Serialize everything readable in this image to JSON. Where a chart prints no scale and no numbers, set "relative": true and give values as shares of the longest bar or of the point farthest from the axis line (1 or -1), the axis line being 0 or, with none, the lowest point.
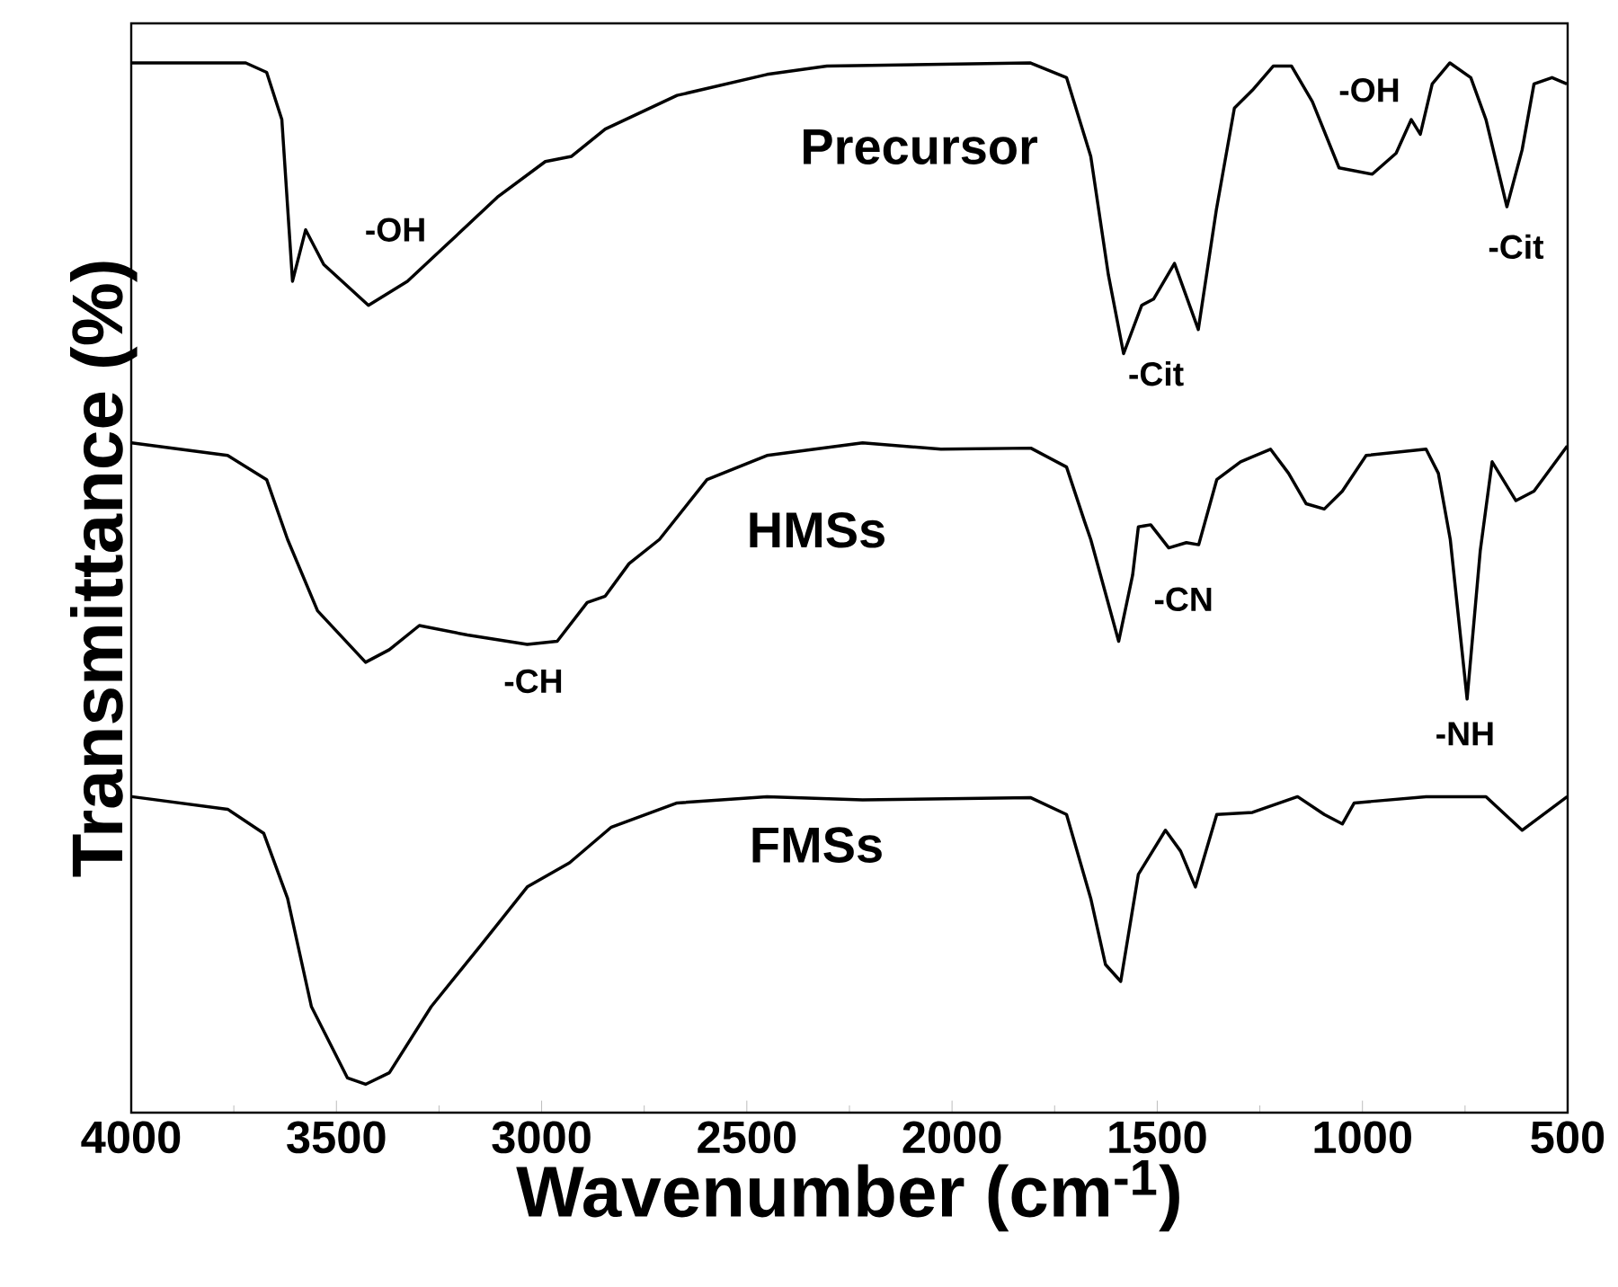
{
  "chart_data": {
    "type": "line",
    "xlabel": "Wavenumber (cm$^{-1}$)",
    "ylabel": "Transmittance (%)",
    "relative": true,
    "xlim": [
      4000,
      500
    ],
    "xticks": [
      4000,
      3500,
      3000,
      2500,
      2000,
      1500,
      1000,
      500
    ],
    "series": [
      {
        "name": "Precursor",
        "color": "#000000",
        "x": [
          4000,
          3721,
          3670,
          3633,
          3607,
          3575,
          3531,
          3422,
          3327,
          3239,
          3108,
          2991,
          2927,
          2845,
          2670,
          2451,
          2305,
          1810,
          1721,
          1662,
          1619,
          1582,
          1538,
          1509,
          1458,
          1400,
          1356,
          1312,
          1268,
          1217,
          1173,
          1122,
          1057,
          976,
          918,
          881,
          859,
          830,
          787,
          736,
          699,
          648,
          611,
          582,
          538,
          502
        ],
        "values": [
          1.0,
          1.0,
          0.991,
          0.946,
          0.792,
          0.841,
          0.808,
          0.769,
          0.792,
          0.824,
          0.872,
          0.906,
          0.911,
          0.937,
          0.969,
          0.989,
          0.997,
          1.0,
          0.986,
          0.911,
          0.798,
          0.723,
          0.769,
          0.775,
          0.809,
          0.746,
          0.86,
          0.957,
          0.974,
          0.997,
          0.997,
          0.963,
          0.9,
          0.894,
          0.914,
          0.946,
          0.932,
          0.98,
          1.0,
          0.986,
          0.946,
          0.863,
          0.917,
          0.98,
          0.986,
          0.98
        ]
      },
      {
        "name": "HMSs",
        "color": "#000000",
        "x": [
          3999,
          3765,
          3670,
          3619,
          3546,
          3429,
          3371,
          3298,
          3181,
          3035,
          2962,
          2889,
          2845,
          2787,
          2713,
          2597,
          2451,
          2218,
          2027,
          1808,
          1721,
          1677,
          1662,
          1594,
          1560,
          1546,
          1516,
          1472,
          1429,
          1399,
          1355,
          1297,
          1224,
          1180,
          1137,
          1093,
          1049,
          991,
          845,
          815,
          786,
          745,
          713,
          684,
          626,
          582,
          501
        ],
        "values": [
          0.638,
          0.626,
          0.603,
          0.546,
          0.478,
          0.429,
          0.441,
          0.464,
          0.455,
          0.446,
          0.449,
          0.486,
          0.492,
          0.523,
          0.546,
          0.603,
          0.626,
          0.638,
          0.632,
          0.633,
          0.615,
          0.563,
          0.546,
          0.449,
          0.512,
          0.558,
          0.56,
          0.538,
          0.543,
          0.541,
          0.603,
          0.62,
          0.632,
          0.609,
          0.58,
          0.575,
          0.592,
          0.626,
          0.632,
          0.609,
          0.546,
          0.394,
          0.535,
          0.62,
          0.583,
          0.592,
          0.635
        ]
      },
      {
        "name": "FMSs",
        "color": "#000000",
        "x": [
          3999,
          3765,
          3677,
          3619,
          3561,
          3473,
          3429,
          3371,
          3269,
          3151,
          3035,
          2932,
          2830,
          2670,
          2451,
          2218,
          1808,
          1721,
          1662,
          1626,
          1589,
          1546,
          1480,
          1443,
          1407,
          1355,
          1268,
          1158,
          1093,
          1049,
          1020,
          845,
          699,
          611,
          501
        ],
        "values": [
          0.301,
          0.289,
          0.266,
          0.204,
          0.101,
          0.033,
          0.027,
          0.038,
          0.101,
          0.158,
          0.215,
          0.238,
          0.272,
          0.295,
          0.301,
          0.298,
          0.3,
          0.284,
          0.204,
          0.141,
          0.125,
          0.227,
          0.269,
          0.249,
          0.215,
          0.284,
          0.286,
          0.301,
          0.284,
          0.275,
          0.295,
          0.301,
          0.301,
          0.269,
          0.301
        ]
      }
    ],
    "annotations": [
      "-OH",
      "-Cit",
      "-OH",
      "-Cit",
      "-CH",
      "-CN",
      "-NH"
    ]
  }
}
